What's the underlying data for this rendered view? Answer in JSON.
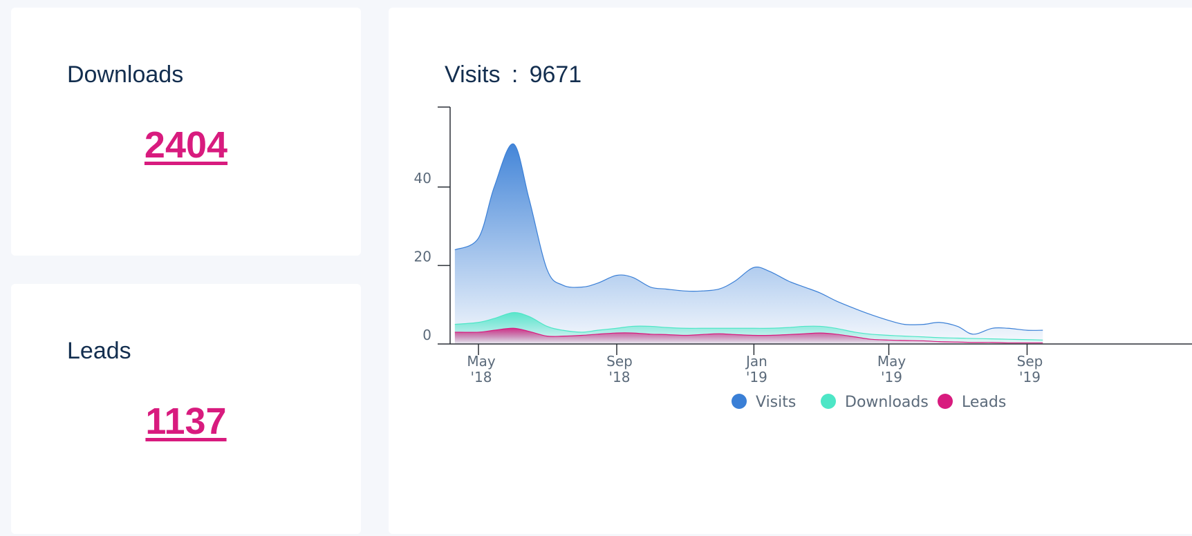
{
  "stats": {
    "downloads": {
      "label": "Downloads",
      "value": "2404"
    },
    "leads": {
      "label": "Leads",
      "value": "1137"
    }
  },
  "visits_card": {
    "title": "Visits",
    "separator": ":",
    "total": "9671"
  },
  "colors": {
    "visits": "#3a7fd6",
    "downloads": "#4de6c6",
    "leads": "#d81b7e",
    "text": "#132e4f",
    "link": "#d81b7e"
  },
  "chart_data": {
    "type": "area",
    "title": "",
    "xlabel": "",
    "ylabel": "",
    "ylim": [
      0,
      60
    ],
    "y_ticks": [
      0,
      20,
      40
    ],
    "x_ticks": [
      {
        "date": "2018-05-01",
        "label": [
          "May",
          "'18"
        ]
      },
      {
        "date": "2018-09-01",
        "label": [
          "Sep",
          "'18"
        ]
      },
      {
        "date": "2019-01-01",
        "label": [
          "Jan",
          "'19"
        ]
      },
      {
        "date": "2019-05-01",
        "label": [
          "May",
          "'19"
        ]
      },
      {
        "date": "2019-09-01",
        "label": [
          "Sep",
          "'19"
        ]
      }
    ],
    "x": [
      "2018-04-10",
      "2018-05-01",
      "2018-05-15",
      "2018-06-01",
      "2018-06-15",
      "2018-07-01",
      "2018-07-15",
      "2018-08-01",
      "2018-08-15",
      "2018-09-01",
      "2018-09-15",
      "2018-10-01",
      "2018-10-15",
      "2018-11-01",
      "2018-11-15",
      "2018-12-01",
      "2018-12-15",
      "2019-01-01",
      "2019-01-15",
      "2019-02-01",
      "2019-02-15",
      "2019-03-01",
      "2019-03-15",
      "2019-04-01",
      "2019-04-15",
      "2019-05-01",
      "2019-05-15",
      "2019-06-01",
      "2019-06-15",
      "2019-07-01",
      "2019-07-15",
      "2019-08-01",
      "2019-08-15",
      "2019-09-01",
      "2019-09-15"
    ],
    "series": [
      {
        "name": "Visits",
        "values": [
          24,
          27,
          40,
          51,
          37,
          19,
          15,
          14.5,
          15.5,
          17.5,
          17,
          14.5,
          14,
          13.5,
          13.5,
          14,
          16,
          19.5,
          18.5,
          16,
          14.5,
          13,
          11,
          9,
          7.5,
          6,
          5,
          5,
          5.5,
          4.5,
          2.5,
          4,
          4,
          3.5,
          3.5
        ]
      },
      {
        "name": "Downloads",
        "values": [
          5,
          5.5,
          6.5,
          8,
          7,
          4.5,
          3.5,
          3,
          3.5,
          4,
          4.5,
          4.5,
          4.2,
          4,
          4,
          4,
          4,
          4,
          4,
          4.2,
          4.5,
          4.5,
          4,
          3,
          2.5,
          2.2,
          2,
          1.8,
          1.6,
          1.5,
          1.4,
          1.3,
          1.2,
          1.1,
          1
        ]
      },
      {
        "name": "Leads",
        "values": [
          3,
          3,
          3.5,
          4,
          3.2,
          2,
          2,
          2.2,
          2.5,
          2.8,
          2.8,
          2.5,
          2.4,
          2.2,
          2.4,
          2.6,
          2.4,
          2.2,
          2.2,
          2.4,
          2.6,
          2.8,
          2.5,
          1.8,
          1.2,
          1,
          0.9,
          0.8,
          0.6,
          0.5,
          0.4,
          0.4,
          0.3,
          0.3,
          0.3
        ]
      }
    ],
    "legend": [
      {
        "name": "Visits",
        "color": "#3a7fd6"
      },
      {
        "name": "Downloads",
        "color": "#4de6c6"
      },
      {
        "name": "Leads",
        "color": "#d81b7e"
      }
    ],
    "legend_position": "bottom"
  }
}
